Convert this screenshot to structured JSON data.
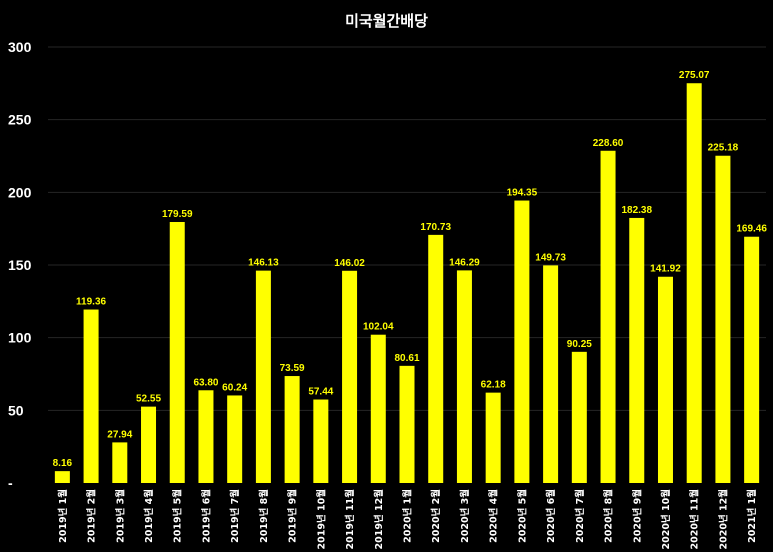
{
  "chart_data": {
    "type": "bar",
    "title": "미국월간배당",
    "xlabel": "",
    "ylabel": "",
    "ylim": [
      0,
      300
    ],
    "yticks": [
      "-",
      "50",
      "100",
      "150",
      "200",
      "250",
      "300"
    ],
    "grid": true,
    "bar_color": "#ffff00",
    "background": "#000000",
    "categories": [
      "2019년 1월",
      "2019년 2월",
      "2019년 3월",
      "2019년 4월",
      "2019년 5월",
      "2019년 6월",
      "2019년 7월",
      "2019년 8월",
      "2019년 9월",
      "2019년 10월",
      "2019년 11월",
      "2019년 12월",
      "2020년 1월",
      "2020년 2월",
      "2020년 3월",
      "2020년 4월",
      "2020년 5월",
      "2020년 6월",
      "2020년 7월",
      "2020년 8월",
      "2020년 9월",
      "2020년 10월",
      "2020년 11월",
      "2020년 12월",
      "2021년 1월"
    ],
    "values": [
      8.16,
      119.36,
      27.94,
      52.55,
      179.59,
      63.8,
      60.24,
      146.13,
      73.59,
      57.44,
      146.02,
      102.04,
      80.61,
      170.73,
      146.29,
      62.18,
      194.35,
      149.73,
      90.25,
      228.6,
      182.38,
      141.92,
      275.07,
      225.18,
      169.46
    ],
    "value_labels": [
      "8.16",
      "119.36",
      "27.94",
      "52.55",
      "179.59",
      "63.80",
      "60.24",
      "146.13",
      "73.59",
      "57.44",
      "146.02",
      "102.04",
      "80.61",
      "170.73",
      "146.29",
      "62.18",
      "194.35",
      "149.73",
      "90.25",
      "228.60",
      "182.38",
      "141.92",
      "275.07",
      "225.18",
      "169.46"
    ]
  }
}
